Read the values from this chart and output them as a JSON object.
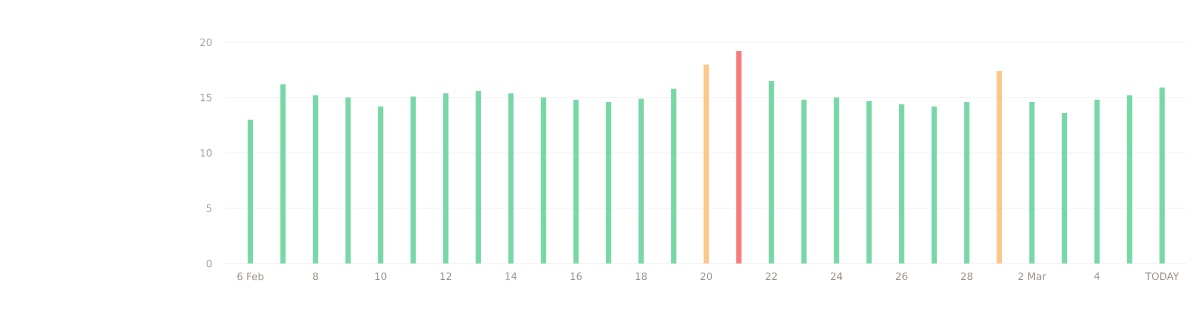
{
  "chart_data": {
    "type": "bar",
    "categories": [
      "6 Feb",
      null,
      "8",
      null,
      "10",
      null,
      "12",
      null,
      "14",
      null,
      "16",
      null,
      "18",
      null,
      "20",
      null,
      "22",
      null,
      "24",
      null,
      "26",
      null,
      "28",
      null,
      "2 Mar",
      null,
      "4",
      null,
      "TODAY"
    ],
    "values": [
      13.0,
      16.2,
      15.2,
      15.0,
      14.2,
      15.1,
      15.4,
      15.6,
      15.4,
      15.0,
      14.8,
      14.6,
      14.9,
      15.8,
      18.0,
      19.2,
      16.5,
      14.8,
      15.0,
      14.7,
      14.4,
      14.2,
      14.6,
      17.4,
      14.6,
      13.6,
      14.8,
      15.2,
      15.9
    ],
    "colors": [
      "#77d8a6",
      "#77d8a6",
      "#77d8a6",
      "#77d8a6",
      "#77d8a6",
      "#77d8a6",
      "#77d8a6",
      "#77d8a6",
      "#77d8a6",
      "#77d8a6",
      "#77d8a6",
      "#77d8a6",
      "#77d8a6",
      "#77d8a6",
      "#fdc78c",
      "#f87b7b",
      "#77d8a6",
      "#77d8a6",
      "#77d8a6",
      "#77d8a6",
      "#77d8a6",
      "#77d8a6",
      "#77d8a6",
      "#fdc78c",
      "#77d8a6",
      "#77d8a6",
      "#77d8a6",
      "#77d8a6",
      "#77d8a6"
    ],
    "ylim": [
      0,
      20
    ],
    "yticks": [
      0,
      5,
      10,
      15,
      20
    ],
    "grid": "y"
  }
}
